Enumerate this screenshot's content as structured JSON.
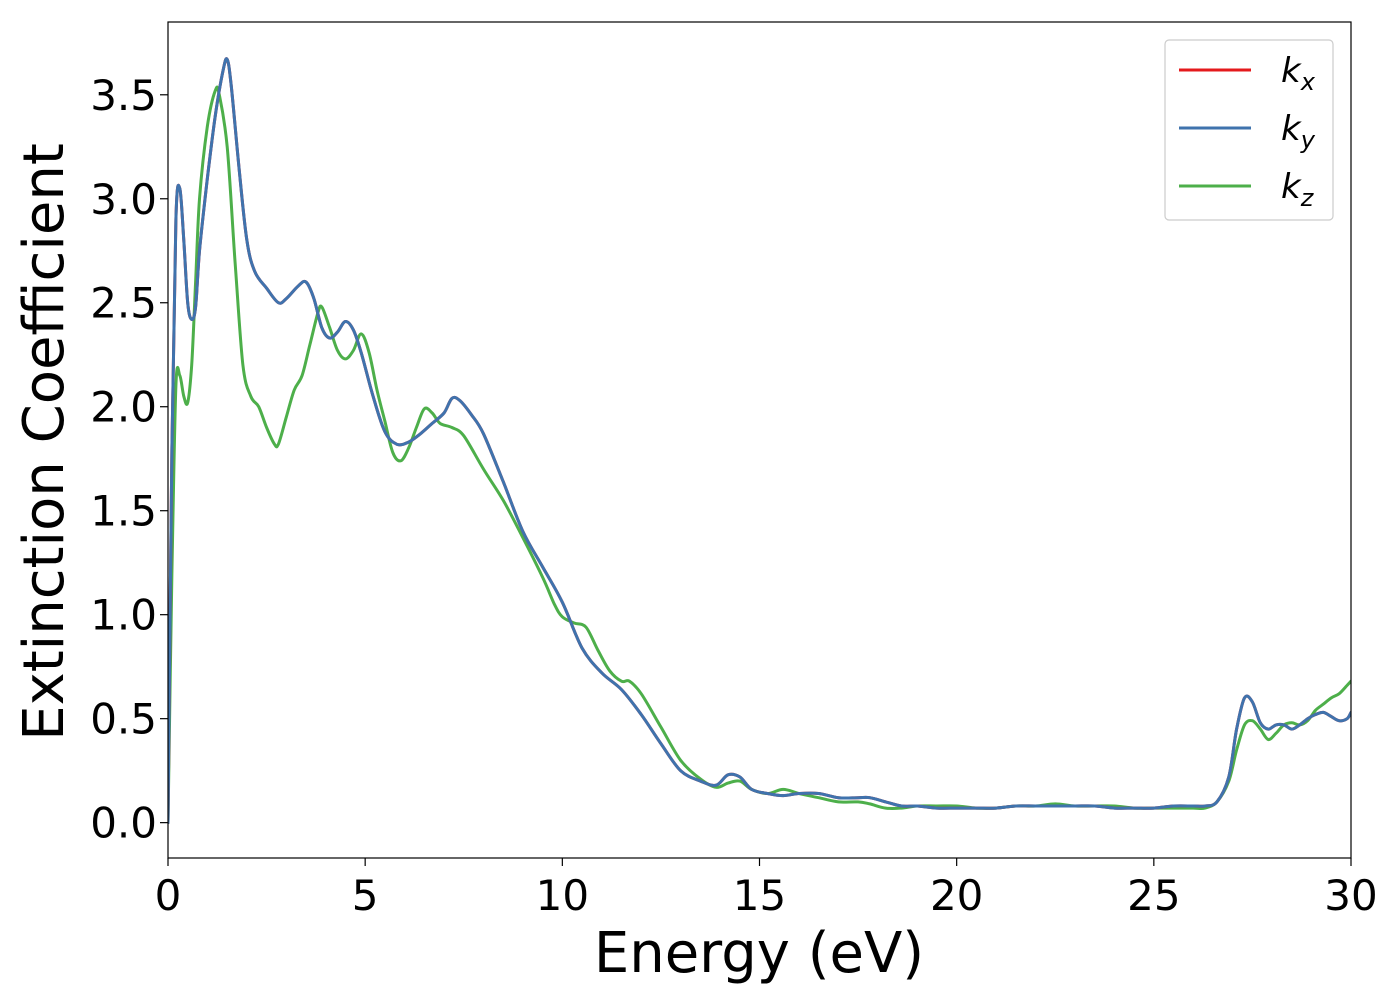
{
  "chart_data": {
    "type": "line",
    "title": "",
    "xlabel": "Energy (eV)",
    "ylabel": "Extinction Coefficient",
    "xlim": [
      0,
      30
    ],
    "ylim": [
      -0.17,
      3.85
    ],
    "xticks": [
      {
        "value": 0,
        "label": "0"
      },
      {
        "value": 5,
        "label": "5"
      },
      {
        "value": 10,
        "label": "10"
      },
      {
        "value": 15,
        "label": "15"
      },
      {
        "value": 20,
        "label": "20"
      },
      {
        "value": 25,
        "label": "25"
      },
      {
        "value": 30,
        "label": "30"
      }
    ],
    "yticks": [
      {
        "value": 0.0,
        "label": "0.0"
      },
      {
        "value": 0.5,
        "label": "0.5"
      },
      {
        "value": 1.0,
        "label": "1.0"
      },
      {
        "value": 1.5,
        "label": "1.5"
      },
      {
        "value": 2.0,
        "label": "2.0"
      },
      {
        "value": 2.5,
        "label": "2.5"
      },
      {
        "value": 3.0,
        "label": "3.0"
      },
      {
        "value": 3.5,
        "label": "3.5"
      }
    ],
    "grid": false,
    "legend_position": "top-right",
    "series": [
      {
        "name": "k_x",
        "label_base": "k",
        "label_sub": "x",
        "color": "#e41a1c",
        "x": [
          0,
          0.1,
          0.2,
          0.3,
          0.4,
          0.5,
          0.6,
          0.7,
          0.8,
          1.0,
          1.2,
          1.4,
          1.5,
          1.6,
          1.8,
          2.0,
          2.2,
          2.5,
          2.8,
          3.0,
          3.3,
          3.5,
          3.7,
          3.9,
          4.1,
          4.3,
          4.5,
          4.7,
          4.9,
          5.2,
          5.5,
          5.8,
          6.1,
          6.4,
          6.7,
          7.0,
          7.2,
          7.4,
          7.7,
          8.0,
          8.5,
          9.0,
          9.5,
          10.0,
          10.5,
          11.0,
          11.5,
          12.0,
          12.5,
          13.0,
          13.5,
          13.9,
          14.2,
          14.5,
          14.8,
          15.2,
          15.6,
          16.0,
          16.5,
          17.0,
          17.5,
          17.8,
          18.2,
          18.6,
          19.0,
          19.5,
          20.0,
          20.5,
          21.0,
          21.5,
          22.0,
          22.5,
          23.0,
          23.5,
          24.0,
          24.5,
          25.0,
          25.5,
          26.0,
          26.3,
          26.6,
          26.9,
          27.1,
          27.3,
          27.5,
          27.7,
          27.9,
          28.1,
          28.3,
          28.5,
          28.7,
          28.9,
          29.1,
          29.3,
          29.5,
          29.7,
          29.9,
          30.0
        ],
        "y": [
          0,
          1.8,
          2.9,
          3.05,
          2.8,
          2.5,
          2.42,
          2.48,
          2.75,
          3.1,
          3.4,
          3.62,
          3.67,
          3.55,
          3.15,
          2.8,
          2.65,
          2.57,
          2.5,
          2.52,
          2.58,
          2.6,
          2.52,
          2.38,
          2.33,
          2.36,
          2.41,
          2.37,
          2.26,
          2.05,
          1.88,
          1.82,
          1.83,
          1.87,
          1.92,
          1.97,
          2.04,
          2.03,
          1.96,
          1.87,
          1.64,
          1.4,
          1.23,
          1.06,
          0.84,
          0.72,
          0.64,
          0.52,
          0.38,
          0.25,
          0.2,
          0.18,
          0.23,
          0.22,
          0.16,
          0.14,
          0.13,
          0.14,
          0.14,
          0.12,
          0.12,
          0.12,
          0.1,
          0.08,
          0.08,
          0.07,
          0.07,
          0.07,
          0.07,
          0.08,
          0.08,
          0.08,
          0.08,
          0.08,
          0.07,
          0.07,
          0.07,
          0.08,
          0.08,
          0.08,
          0.1,
          0.22,
          0.45,
          0.6,
          0.58,
          0.48,
          0.45,
          0.47,
          0.47,
          0.45,
          0.47,
          0.5,
          0.52,
          0.53,
          0.51,
          0.49,
          0.5,
          0.53
        ]
      },
      {
        "name": "k_y",
        "label_base": "k",
        "label_sub": "y",
        "color": "#3f73ad",
        "x": [
          0,
          0.1,
          0.2,
          0.3,
          0.4,
          0.5,
          0.6,
          0.7,
          0.8,
          1.0,
          1.2,
          1.4,
          1.5,
          1.6,
          1.8,
          2.0,
          2.2,
          2.5,
          2.8,
          3.0,
          3.3,
          3.5,
          3.7,
          3.9,
          4.1,
          4.3,
          4.5,
          4.7,
          4.9,
          5.2,
          5.5,
          5.8,
          6.1,
          6.4,
          6.7,
          7.0,
          7.2,
          7.4,
          7.7,
          8.0,
          8.5,
          9.0,
          9.5,
          10.0,
          10.5,
          11.0,
          11.5,
          12.0,
          12.5,
          13.0,
          13.5,
          13.9,
          14.2,
          14.5,
          14.8,
          15.2,
          15.6,
          16.0,
          16.5,
          17.0,
          17.5,
          17.8,
          18.2,
          18.6,
          19.0,
          19.5,
          20.0,
          20.5,
          21.0,
          21.5,
          22.0,
          22.5,
          23.0,
          23.5,
          24.0,
          24.5,
          25.0,
          25.5,
          26.0,
          26.3,
          26.6,
          26.9,
          27.1,
          27.3,
          27.5,
          27.7,
          27.9,
          28.1,
          28.3,
          28.5,
          28.7,
          28.9,
          29.1,
          29.3,
          29.5,
          29.7,
          29.9,
          30.0
        ],
        "y": [
          0,
          1.8,
          2.9,
          3.05,
          2.8,
          2.5,
          2.42,
          2.48,
          2.75,
          3.1,
          3.4,
          3.62,
          3.67,
          3.55,
          3.15,
          2.8,
          2.65,
          2.57,
          2.5,
          2.52,
          2.58,
          2.6,
          2.52,
          2.38,
          2.33,
          2.36,
          2.41,
          2.37,
          2.26,
          2.05,
          1.88,
          1.82,
          1.83,
          1.87,
          1.92,
          1.97,
          2.04,
          2.03,
          1.96,
          1.87,
          1.64,
          1.4,
          1.23,
          1.06,
          0.84,
          0.72,
          0.64,
          0.52,
          0.38,
          0.25,
          0.2,
          0.18,
          0.23,
          0.22,
          0.16,
          0.14,
          0.13,
          0.14,
          0.14,
          0.12,
          0.12,
          0.12,
          0.1,
          0.08,
          0.08,
          0.07,
          0.07,
          0.07,
          0.07,
          0.08,
          0.08,
          0.08,
          0.08,
          0.08,
          0.07,
          0.07,
          0.07,
          0.08,
          0.08,
          0.08,
          0.1,
          0.22,
          0.45,
          0.6,
          0.58,
          0.48,
          0.45,
          0.47,
          0.47,
          0.45,
          0.47,
          0.5,
          0.52,
          0.53,
          0.51,
          0.49,
          0.5,
          0.53
        ]
      },
      {
        "name": "k_z",
        "label_base": "k",
        "label_sub": "z",
        "color": "#4daf4a",
        "x": [
          0,
          0.1,
          0.2,
          0.3,
          0.4,
          0.5,
          0.6,
          0.7,
          0.8,
          1.0,
          1.2,
          1.3,
          1.5,
          1.7,
          1.9,
          2.1,
          2.3,
          2.5,
          2.7,
          2.8,
          3.0,
          3.2,
          3.4,
          3.6,
          3.8,
          3.9,
          4.1,
          4.3,
          4.5,
          4.7,
          4.9,
          5.1,
          5.3,
          5.5,
          5.7,
          5.9,
          6.1,
          6.3,
          6.5,
          6.7,
          6.9,
          7.2,
          7.5,
          8.0,
          8.5,
          9.0,
          9.5,
          9.8,
          10.0,
          10.3,
          10.6,
          10.9,
          11.2,
          11.5,
          11.7,
          12.0,
          12.5,
          13.0,
          13.5,
          13.9,
          14.2,
          14.5,
          14.8,
          15.2,
          15.6,
          16.0,
          16.5,
          17.0,
          17.5,
          17.8,
          18.2,
          18.6,
          19.0,
          19.5,
          20.0,
          20.5,
          21.0,
          21.5,
          22.0,
          22.5,
          23.0,
          23.5,
          24.0,
          24.5,
          25.0,
          25.5,
          26.0,
          26.3,
          26.6,
          26.9,
          27.1,
          27.3,
          27.5,
          27.7,
          27.9,
          28.1,
          28.3,
          28.5,
          28.7,
          28.9,
          29.1,
          29.3,
          29.5,
          29.7,
          29.9,
          30.0
        ],
        "y": [
          0,
          1.2,
          2.1,
          2.15,
          2.05,
          2.02,
          2.2,
          2.6,
          3.0,
          3.35,
          3.52,
          3.5,
          3.25,
          2.7,
          2.2,
          2.05,
          2.0,
          1.9,
          1.82,
          1.82,
          1.95,
          2.08,
          2.15,
          2.3,
          2.45,
          2.48,
          2.38,
          2.27,
          2.23,
          2.27,
          2.35,
          2.26,
          2.08,
          1.93,
          1.78,
          1.74,
          1.8,
          1.9,
          1.99,
          1.97,
          1.92,
          1.9,
          1.86,
          1.7,
          1.55,
          1.37,
          1.18,
          1.05,
          0.99,
          0.96,
          0.94,
          0.83,
          0.73,
          0.68,
          0.68,
          0.62,
          0.46,
          0.3,
          0.21,
          0.17,
          0.19,
          0.2,
          0.16,
          0.14,
          0.16,
          0.14,
          0.12,
          0.1,
          0.1,
          0.09,
          0.07,
          0.07,
          0.08,
          0.08,
          0.08,
          0.07,
          0.07,
          0.08,
          0.08,
          0.09,
          0.08,
          0.08,
          0.08,
          0.07,
          0.07,
          0.07,
          0.07,
          0.07,
          0.1,
          0.2,
          0.35,
          0.47,
          0.49,
          0.45,
          0.4,
          0.43,
          0.47,
          0.48,
          0.47,
          0.49,
          0.54,
          0.57,
          0.6,
          0.62,
          0.66,
          0.68
        ]
      }
    ]
  }
}
